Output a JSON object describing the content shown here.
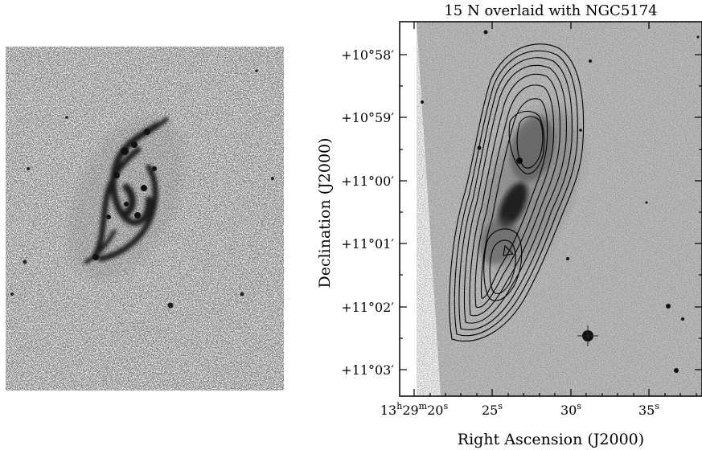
{
  "left_panel": {
    "image": "optical-galaxy-negative",
    "colors": {
      "background": "#ececec",
      "arms": "#1a1a1a"
    }
  },
  "right_panel": {
    "title": "15 N overlaid with NGC5174",
    "ylabel": "Declination (J2000)",
    "xlabel": "Right Ascension (J2000)",
    "y_ticks": [
      "+10°58′",
      "+10°59′",
      "+11°00′",
      "+11°01′",
      "+11°02′",
      "+11°03′"
    ],
    "x_ticks": [
      {
        "main": "13",
        "sup1": "h",
        "mid": "29",
        "sup2": "m",
        "end": "20",
        "sup3": "s"
      },
      {
        "main": "25",
        "sup3": "s"
      },
      {
        "main": "30",
        "sup3": "s"
      },
      {
        "main": "35",
        "sup3": "s"
      }
    ],
    "contour_levels": 11,
    "colors": {
      "image_bg": "#c4c4c4",
      "contour": "#000000",
      "frame": "#000000"
    }
  }
}
